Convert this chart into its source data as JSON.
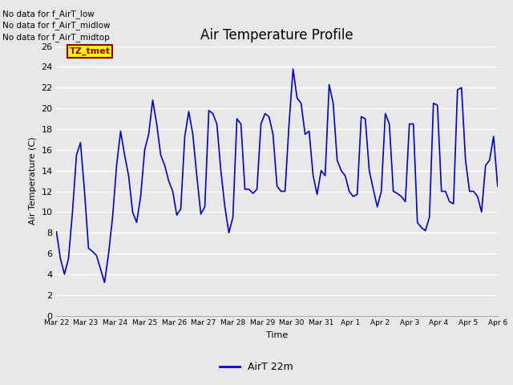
{
  "title": "Air Temperature Profile",
  "xlabel": "Time",
  "ylabel": "Air Temperature (C)",
  "ylim": [
    0,
    26
  ],
  "yticks": [
    0,
    2,
    4,
    6,
    8,
    10,
    12,
    14,
    16,
    18,
    20,
    22,
    24,
    26
  ],
  "line_color": "#0000cc",
  "line_width": 1.2,
  "background_color": "#e8e8e8",
  "grid_color": "#ffffff",
  "legend_label": "AirT 22m",
  "no_data_texts": [
    "No data for f_AirT_low",
    "No data for f_AirT_midlow",
    "No data for f_AirT_midtop"
  ],
  "tz_label": "TZ_tmet",
  "x_dates": [
    "Mar 22",
    "Mar 23",
    "Mar 24",
    "Mar 25",
    "Mar 26",
    "Mar 27",
    "Mar 28",
    "Mar 29",
    "Mar 30",
    "Mar 31",
    "Apr 1",
    "Apr 2",
    "Apr 3",
    "Apr 4",
    "Apr 5",
    "Apr 6"
  ],
  "temp_data": [
    8.1,
    5.5,
    4.0,
    5.5,
    10.0,
    15.5,
    16.7,
    12.0,
    6.5,
    6.2,
    5.8,
    4.5,
    3.2,
    6.0,
    9.5,
    14.5,
    17.8,
    15.5,
    13.5,
    10.0,
    9.0,
    11.5,
    16.0,
    17.5,
    20.8,
    18.5,
    15.5,
    14.5,
    13.0,
    12.0,
    9.7,
    10.3,
    17.3,
    19.7,
    17.5,
    13.5,
    9.8,
    10.5,
    19.8,
    19.5,
    18.5,
    14.0,
    10.5,
    8.0,
    9.5,
    19.0,
    18.5,
    12.2,
    12.2,
    11.8,
    12.2,
    18.5,
    19.5,
    19.2,
    17.5,
    12.5,
    12.0,
    12.0,
    18.5,
    23.8,
    21.0,
    20.5,
    17.5,
    17.8,
    13.5,
    11.7,
    14.0,
    13.5,
    22.3,
    20.5,
    15.0,
    14.0,
    13.5,
    12.0,
    11.5,
    11.7,
    19.2,
    19.0,
    14.0,
    12.2,
    10.5,
    12.0,
    19.5,
    18.5,
    12.0,
    11.8,
    11.5,
    11.0,
    18.5,
    18.5,
    9.0,
    8.5,
    8.2,
    9.5,
    20.5,
    20.3,
    12.0,
    12.0,
    11.0,
    10.8,
    21.8,
    22.0,
    15.0,
    12.0,
    12.0,
    11.5,
    10.0,
    14.5,
    15.0,
    17.3,
    12.5
  ]
}
